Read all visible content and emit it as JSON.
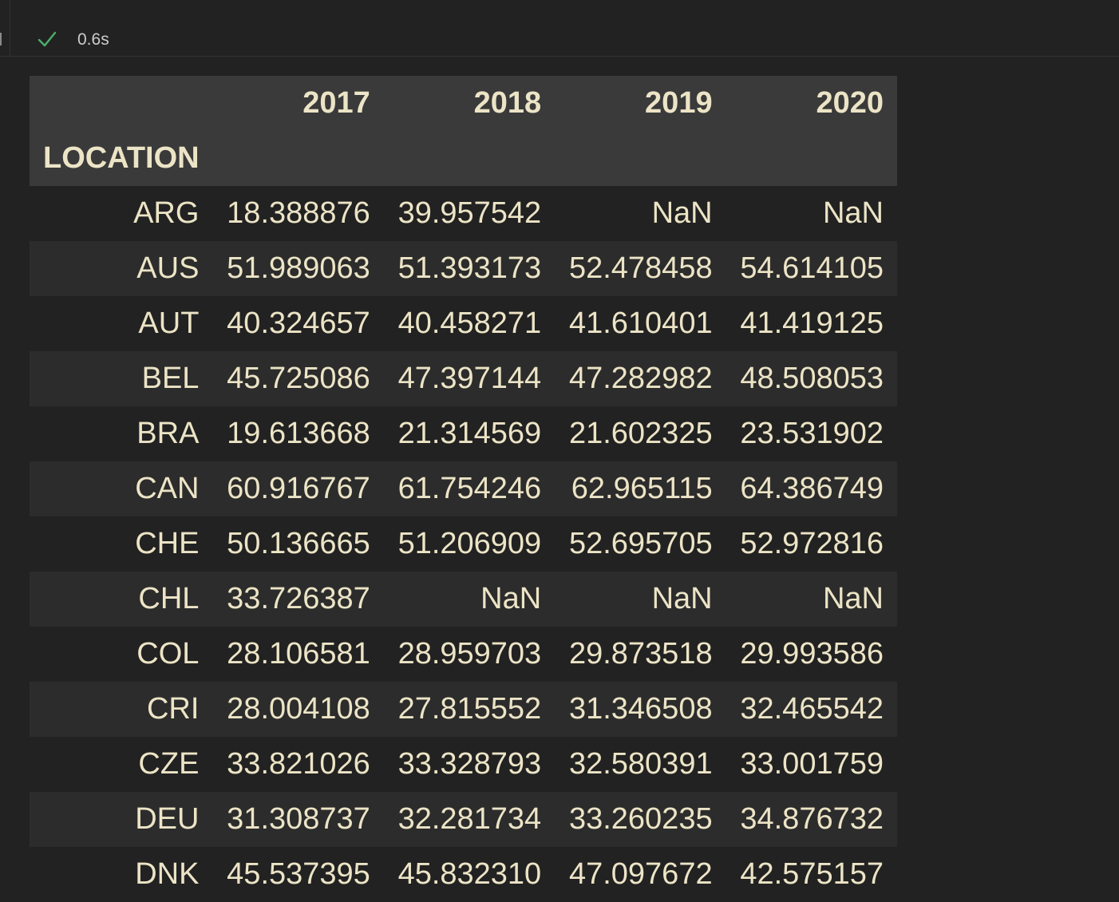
{
  "status": {
    "check_icon": "check-icon",
    "execution_time": "0.6s",
    "success_color": "#4caf6a"
  },
  "table": {
    "columns": [
      "2017",
      "2018",
      "2019",
      "2020"
    ],
    "index_name": "LOCATION",
    "rows": [
      {
        "label": "ARG",
        "values": [
          "18.388876",
          "39.957542",
          "NaN",
          "NaN"
        ]
      },
      {
        "label": "AUS",
        "values": [
          "51.989063",
          "51.393173",
          "52.478458",
          "54.614105"
        ]
      },
      {
        "label": "AUT",
        "values": [
          "40.324657",
          "40.458271",
          "41.610401",
          "41.419125"
        ]
      },
      {
        "label": "BEL",
        "values": [
          "45.725086",
          "47.397144",
          "47.282982",
          "48.508053"
        ]
      },
      {
        "label": "BRA",
        "values": [
          "19.613668",
          "21.314569",
          "21.602325",
          "23.531902"
        ]
      },
      {
        "label": "CAN",
        "values": [
          "60.916767",
          "61.754246",
          "62.965115",
          "64.386749"
        ]
      },
      {
        "label": "CHE",
        "values": [
          "50.136665",
          "51.206909",
          "52.695705",
          "52.972816"
        ]
      },
      {
        "label": "CHL",
        "values": [
          "33.726387",
          "NaN",
          "NaN",
          "NaN"
        ]
      },
      {
        "label": "COL",
        "values": [
          "28.106581",
          "28.959703",
          "29.873518",
          "29.993586"
        ]
      },
      {
        "label": "CRI",
        "values": [
          "28.004108",
          "27.815552",
          "31.346508",
          "32.465542"
        ]
      },
      {
        "label": "CZE",
        "values": [
          "33.821026",
          "33.328793",
          "32.580391",
          "33.001759"
        ]
      },
      {
        "label": "DEU",
        "values": [
          "31.308737",
          "32.281734",
          "33.260235",
          "34.876732"
        ]
      },
      {
        "label": "DNK",
        "values": [
          "45.537395",
          "45.832310",
          "47.097672",
          "42.575157"
        ]
      }
    ]
  }
}
